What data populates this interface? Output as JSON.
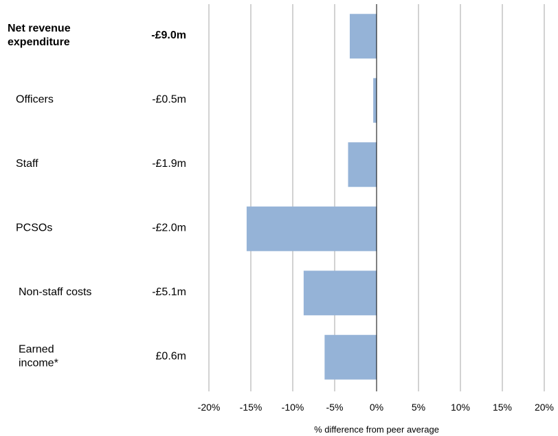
{
  "chart_data": {
    "type": "bar",
    "orientation": "horizontal",
    "categories": [
      {
        "label": [
          "Net revenue",
          "expenditure"
        ],
        "amount": "-£9.0m",
        "bold": true
      },
      {
        "label": [
          "Officers"
        ],
        "amount": "-£0.5m",
        "bold": false
      },
      {
        "label": [
          "Staff"
        ],
        "amount": "-£1.9m",
        "bold": false
      },
      {
        "label": [
          "PCSOs"
        ],
        "amount": "-£2.0m",
        "bold": false
      },
      {
        "label": [
          "Non-staff costs"
        ],
        "amount": "-£5.1m",
        "bold": false
      },
      {
        "label": [
          "Earned",
          "income*"
        ],
        "amount": "£0.6m",
        "bold": false
      }
    ],
    "values": [
      -3.2,
      -0.4,
      -3.4,
      -15.5,
      -8.7,
      -6.2
    ],
    "xlim": [
      -20,
      20
    ],
    "xticks": [
      -20,
      -15,
      -10,
      -5,
      0,
      5,
      10,
      15,
      20
    ],
    "xtick_labels": [
      "-20%",
      "-15%",
      "-10%",
      "-5%",
      "0%",
      "5%",
      "10%",
      "15%",
      "20%"
    ],
    "xlabel": "% difference from peer average",
    "ylabel": "",
    "title": "",
    "grid": true,
    "legend": "none",
    "bar_color": "#95B3D7",
    "grid_color": "#A6A6A6",
    "zero_line_color": "#000000"
  }
}
